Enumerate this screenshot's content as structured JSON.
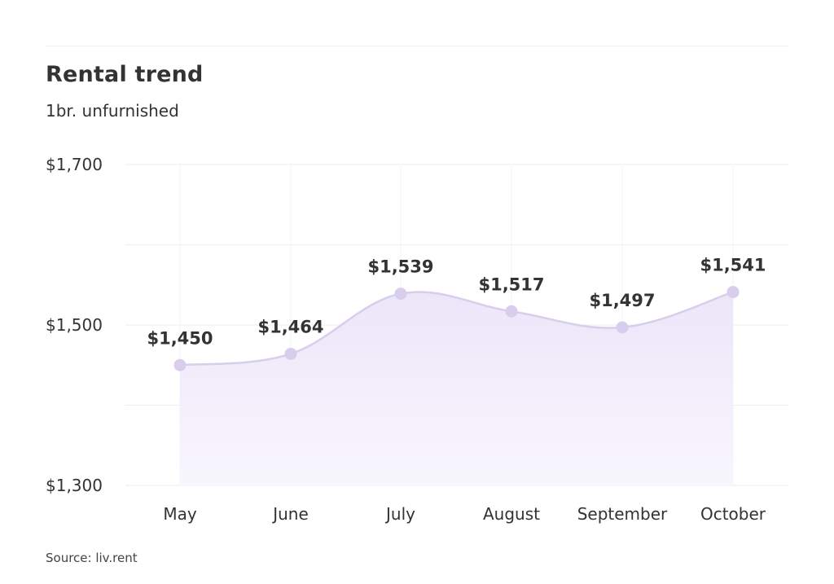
{
  "chart_data": {
    "type": "line",
    "title": "Rental trend",
    "subtitle": "1br. unfurnished",
    "categories": [
      "May",
      "June",
      "July",
      "August",
      "September",
      "October"
    ],
    "series": [
      {
        "values": [
          1450,
          1464,
          1539,
          1517,
          1497,
          1541
        ],
        "labels": [
          "$1,450",
          "$1,464",
          "$1,539",
          "$1,517",
          "$1,497",
          "$1,541"
        ]
      }
    ],
    "ylim": [
      1300,
      1700
    ],
    "yticks": [
      1300,
      1500,
      1700
    ],
    "ytick_labels": [
      "$1,300",
      "$1,500",
      "$1,700"
    ],
    "grid": true,
    "area_fill": true,
    "smooth": true,
    "colors": {
      "line": "#d8cdea",
      "marker": "#d9cdee",
      "fill_top": "#ece6f9",
      "fill_bottom": "#f8f6fd",
      "grid": "#eeeeee"
    },
    "source": "Source: liv.rent"
  }
}
